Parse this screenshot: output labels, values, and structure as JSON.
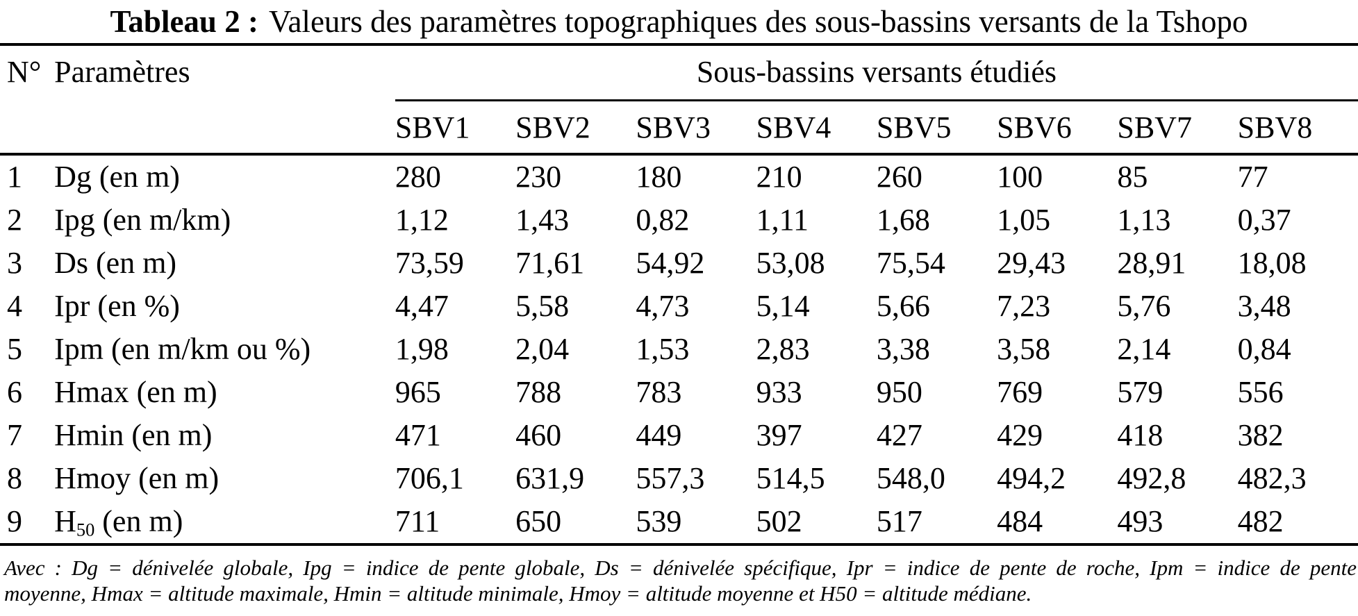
{
  "title": {
    "label": "Tableau 2 :",
    "text": "Valeurs des paramètres topographiques des sous-bassins versants de la Tshopo"
  },
  "table": {
    "col_num_header": "N°",
    "col_param_header": "Paramètres",
    "group_header": "Sous-bassins versants étudiés",
    "basin_headers": [
      "SBV1",
      "SBV2",
      "SBV3",
      "SBV4",
      "SBV5",
      "SBV6",
      "SBV7",
      "SBV8"
    ],
    "rows": [
      {
        "num": "1",
        "label": "Dg (en m)",
        "values": [
          "280",
          "230",
          "180",
          "210",
          "260",
          "100",
          "85",
          "77"
        ]
      },
      {
        "num": "2",
        "label": "Ipg (en m/km)",
        "values": [
          "1,12",
          "1,43",
          "0,82",
          "1,11",
          "1,68",
          "1,05",
          "1,13",
          "0,37"
        ]
      },
      {
        "num": "3",
        "label": "Ds (en m)",
        "values": [
          "73,59",
          "71,61",
          "54,92",
          "53,08",
          "75,54",
          "29,43",
          "28,91",
          "18,08"
        ]
      },
      {
        "num": "4",
        "label": "Ipr (en %)",
        "values": [
          "4,47",
          "5,58",
          "4,73",
          "5,14",
          "5,66",
          "7,23",
          "5,76",
          "3,48"
        ]
      },
      {
        "num": "5",
        "label": "Ipm (en m/km ou %)",
        "values": [
          "1,98",
          "2,04",
          "1,53",
          "2,83",
          "3,38",
          "3,58",
          "2,14",
          "0,84"
        ]
      },
      {
        "num": "6",
        "label": "Hmax (en m)",
        "values": [
          "965",
          "788",
          "783",
          "933",
          "950",
          "769",
          "579",
          "556"
        ]
      },
      {
        "num": "7",
        "label": "Hmin (en m)",
        "values": [
          "471",
          "460",
          "449",
          "397",
          "427",
          "429",
          "418",
          "382"
        ]
      },
      {
        "num": "8",
        "label": "Hmoy (en m)",
        "values": [
          "706,1",
          "631,9",
          "557,3",
          "514,5",
          "548,0",
          "494,2",
          "492,8",
          "482,3"
        ]
      },
      {
        "num": "9",
        "label_prefix": "H",
        "label_sub": "50",
        "label_suffix": " (en m)",
        "values": [
          "711",
          "650",
          "539",
          "502",
          "517",
          "484",
          "493",
          "482"
        ]
      }
    ]
  },
  "footnote": {
    "line1": "Avec : Dg = dénivelée globale, Ipg = indice de pente globale, Ds = dénivelée spécifique, Ipr = indice de pente de roche, Ipm = indice de pente",
    "line2": "moyenne, Hmax = altitude maximale, Hmin = altitude minimale, Hmoy = altitude moyenne et H50 = altitude médiane."
  },
  "colors": {
    "text": "#000000",
    "background": "#ffffff"
  }
}
